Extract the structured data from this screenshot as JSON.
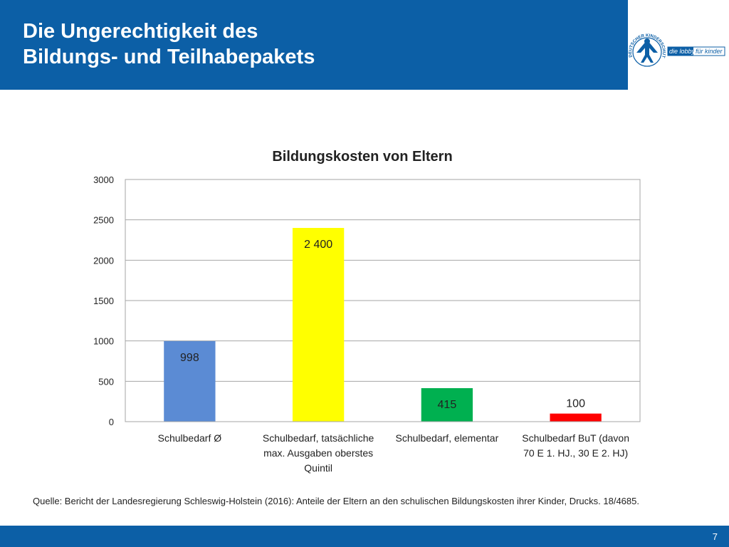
{
  "slide": {
    "title_line1": "Die Ungerechtigkeit des",
    "title_line2": "Bildungs- und Teilhabepakets",
    "source": "Quelle: Bericht der Landesregierung Schleswig-Holstein (2016): Anteile der Eltern an den schulischen Bildungskosten ihrer Kinder, Drucks. 18/4685.",
    "page_number": "7",
    "header_color": "#0c5fa6"
  },
  "logo": {
    "icon": "kinderschutzbund-logo-icon",
    "seal_text": "DEUTSCHER KINDERSCHUTZBUND E.V. (DKSB)",
    "tagline_part1": "die lobby",
    "tagline_part2": "für kinder"
  },
  "chart_data": {
    "type": "bar",
    "title": "Bildungskosten von Eltern",
    "categories": [
      [
        "Schulbedarf Ø"
      ],
      [
        "Schulbedarf, tatsächliche",
        "max. Ausgaben oberstes",
        "Quintil"
      ],
      [
        "Schulbedarf, elementar"
      ],
      [
        "Schulbedarf BuT (davon",
        "70 E 1. HJ., 30 E 2. HJ)"
      ]
    ],
    "values": [
      998,
      2400,
      415,
      100
    ],
    "value_labels": [
      "998",
      "2 400",
      "415",
      "100"
    ],
    "colors": [
      "#5b8bd4",
      "#ffff00",
      "#00b050",
      "#ff0000"
    ],
    "ylim": [
      0,
      3000
    ],
    "yticks": [
      0,
      500,
      1000,
      1500,
      2000,
      2500,
      3000
    ],
    "gridlines": true,
    "legend": "none"
  }
}
